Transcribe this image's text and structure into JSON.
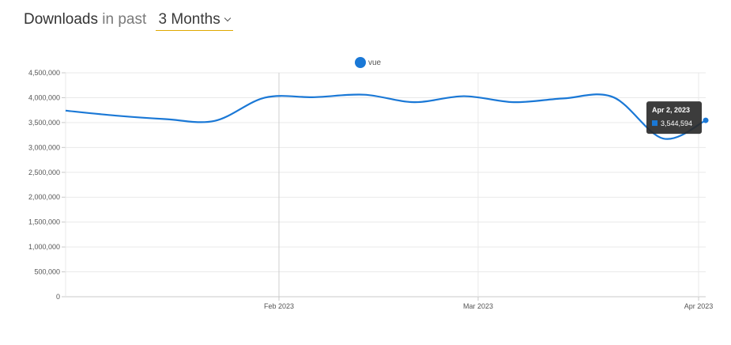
{
  "header": {
    "title_bold": "Downloads",
    "title_rest": "in past",
    "period": "3 Months"
  },
  "colors": {
    "series": "#1a78d6",
    "grid": "#e9e9e9",
    "axis": "#c8c8c8",
    "tooltip_bg": "#2b2b2b"
  },
  "chart_data": {
    "type": "line",
    "legend": [
      "vue"
    ],
    "legend_position": "top-center",
    "grid": true,
    "y_ticks": [
      0,
      500000,
      1000000,
      1500000,
      2000000,
      2500000,
      3000000,
      3500000,
      4000000,
      4500000
    ],
    "y_tick_labels": [
      "0",
      "500,000",
      "1,000,000",
      "1,500,000",
      "2,000,000",
      "2,500,000",
      "3,000,000",
      "3,500,000",
      "4,000,000",
      "4,500,000"
    ],
    "ylim": [
      0,
      4500000
    ],
    "xlim": [
      "2023-01-02",
      "2023-04-02"
    ],
    "x_ticks": [
      {
        "date": "2023-02-01",
        "label": "Feb 2023"
      },
      {
        "date": "2023-03-01",
        "label": "Mar 2023"
      },
      {
        "date": "2023-04-01",
        "label": "Apr 2023"
      }
    ],
    "series": [
      {
        "name": "vue",
        "points": [
          [
            "2023-01-02",
            3740000
          ],
          [
            "2023-01-09",
            3640000
          ],
          [
            "2023-01-16",
            3570000
          ],
          [
            "2023-01-23",
            3535000
          ],
          [
            "2023-01-30",
            4000000
          ],
          [
            "2023-02-06",
            4010000
          ],
          [
            "2023-02-13",
            4060000
          ],
          [
            "2023-02-20",
            3910000
          ],
          [
            "2023-02-27",
            4030000
          ],
          [
            "2023-03-06",
            3910000
          ],
          [
            "2023-03-13",
            3985000
          ],
          [
            "2023-03-20",
            4010000
          ],
          [
            "2023-03-27",
            3180000
          ],
          [
            "2023-04-02",
            3544594
          ]
        ]
      }
    ],
    "tooltip": {
      "date_label": "Apr 2, 2023",
      "value_label": "3,544,594"
    }
  }
}
